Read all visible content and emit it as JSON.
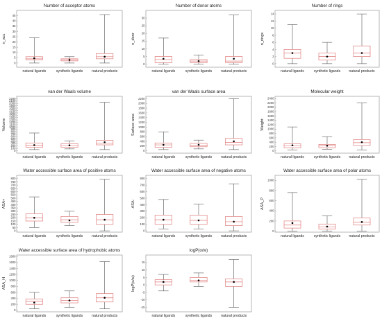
{
  "colors": {
    "box": "#e07a7a",
    "whisker": "#555555",
    "frame": "#999999",
    "mean": "#000000"
  },
  "chart_data": [
    {
      "type": "box",
      "title": "Number of acceptor atoms",
      "ylabel": "n_acc",
      "categories": [
        "natural ligands",
        "synthetic ligands",
        "natural products"
      ],
      "ylim": [
        -4,
        50
      ],
      "yticks": [
        0,
        5,
        10,
        15,
        20,
        25,
        30,
        35,
        40,
        45
      ],
      "boxes": [
        {
          "min": 0,
          "q1": 3,
          "median": 4,
          "q3": 6,
          "max": 24,
          "mean": 4.5
        },
        {
          "min": 0,
          "q1": 2,
          "median": 3,
          "q3": 4,
          "max": 6,
          "mean": 3
        },
        {
          "min": 0,
          "q1": 4,
          "median": 6,
          "q3": 9,
          "max": 46,
          "mean": 6
        }
      ]
    },
    {
      "type": "box",
      "title": "Number of donor atoms",
      "ylabel": "n_donr",
      "categories": [
        "natural ligands",
        "synthetic ligands",
        "natural products"
      ],
      "ylim": [
        -2,
        35
      ],
      "yticks": [
        0,
        5,
        10,
        15,
        20,
        25,
        30
      ],
      "boxes": [
        {
          "min": 0,
          "q1": 1,
          "median": 3,
          "q3": 5,
          "max": 17,
          "mean": 3.5
        },
        {
          "min": 0,
          "q1": 1,
          "median": 2,
          "q3": 3,
          "max": 6,
          "mean": 2
        },
        {
          "min": 0,
          "q1": 1,
          "median": 2,
          "q3": 5,
          "max": 32,
          "mean": 3.5
        }
      ]
    },
    {
      "type": "box",
      "title": "Number of rings",
      "ylabel": "n_rings",
      "categories": [
        "natural ligands",
        "synthetic ligands",
        "natural products"
      ],
      "ylim": [
        -1,
        15
      ],
      "yticks": [
        0,
        2,
        4,
        6,
        8,
        10,
        12,
        14
      ],
      "boxes": [
        {
          "min": 0,
          "q1": 1.5,
          "median": 3,
          "q3": 4,
          "max": 11,
          "mean": 3
        },
        {
          "min": 0,
          "q1": 1,
          "median": 2,
          "q3": 3,
          "max": 6,
          "mean": 2
        },
        {
          "min": 0,
          "q1": 2,
          "median": 3,
          "q3": 5,
          "max": 14,
          "mean": 3
        }
      ]
    },
    {
      "type": "box",
      "title": "van der Waals volume",
      "ylabel": "Volume",
      "categories": [
        "natural ligands",
        "synthetic ligands",
        "natural products"
      ],
      "ylim": [
        -100,
        2300
      ],
      "yticks": [
        0,
        100,
        200,
        300,
        400,
        500,
        600,
        700,
        800,
        900,
        1000,
        1100,
        1200,
        1300,
        1400,
        1500,
        1600,
        1700,
        1800,
        1900,
        2000,
        2100,
        2200
      ],
      "boxes": [
        {
          "min": 50,
          "q1": 150,
          "median": 230,
          "q3": 330,
          "max": 750,
          "mean": 240
        },
        {
          "min": 80,
          "q1": 150,
          "median": 220,
          "q3": 300,
          "max": 420,
          "mean": 230
        },
        {
          "min": 50,
          "q1": 250,
          "median": 330,
          "q3": 440,
          "max": 2050,
          "mean": 360
        }
      ]
    },
    {
      "type": "box",
      "title": "van der Waals surface area",
      "ylabel": "Surface area",
      "categories": [
        "natural ligands",
        "synthetic ligands",
        "natural products"
      ],
      "ylim": [
        -100,
        2300
      ],
      "yticks": [
        0,
        200,
        400,
        600,
        800,
        1000,
        1200,
        1400,
        1600,
        1800,
        2000,
        2200
      ],
      "boxes": [
        {
          "min": 50,
          "q1": 150,
          "median": 250,
          "q3": 330,
          "max": 800,
          "mean": 250
        },
        {
          "min": 80,
          "q1": 170,
          "median": 240,
          "q3": 310,
          "max": 450,
          "mean": 250
        },
        {
          "min": 50,
          "q1": 250,
          "median": 350,
          "q3": 520,
          "max": 2200,
          "mean": 400
        }
      ]
    },
    {
      "type": "box",
      "title": "Molecular weight",
      "ylabel": "Weight",
      "categories": [
        "natural ligands",
        "synthetic ligands",
        "natural products"
      ],
      "ylim": [
        -100,
        2500
      ],
      "yticks": [
        0,
        200,
        400,
        600,
        800,
        1000,
        1200,
        1400,
        1600,
        1800,
        2000,
        2200,
        2400
      ],
      "boxes": [
        {
          "min": 50,
          "q1": 150,
          "median": 250,
          "q3": 330,
          "max": 1100,
          "mean": 260
        },
        {
          "min": 80,
          "q1": 150,
          "median": 230,
          "q3": 300,
          "max": 650,
          "mean": 240
        },
        {
          "min": 50,
          "q1": 250,
          "median": 380,
          "q3": 520,
          "max": 2200,
          "mean": 400
        }
      ]
    },
    {
      "type": "box",
      "title": "Water accessible surface area of positive atoms",
      "ylabel": "ASA+",
      "categories": [
        "natural ligands",
        "synthetic ligands",
        "natural products"
      ],
      "ylim": [
        -20,
        850
      ],
      "yticks": [
        0,
        50,
        100,
        150,
        200,
        250,
        300,
        350,
        400,
        450,
        500,
        550,
        600,
        650,
        700,
        750,
        800
      ],
      "boxes": [
        {
          "min": 50,
          "q1": 150,
          "median": 200,
          "q3": 260,
          "max": 520,
          "mean": 200
        },
        {
          "min": 80,
          "q1": 130,
          "median": 170,
          "q3": 220,
          "max": 300,
          "mean": 160
        },
        {
          "min": 0,
          "q1": 100,
          "median": 170,
          "q3": 250,
          "max": 790,
          "mean": 170
        }
      ]
    },
    {
      "type": "box",
      "title": "Water accessible surface area of negative atoms",
      "ylabel": "ASA-",
      "categories": [
        "natural ligands",
        "synthetic ligands",
        "natural products"
      ],
      "ylim": [
        -20,
        850
      ],
      "yticks": [
        0,
        100,
        200,
        300,
        400,
        500,
        600,
        700,
        800
      ],
      "boxes": [
        {
          "min": 30,
          "q1": 100,
          "median": 170,
          "q3": 240,
          "max": 480,
          "mean": 170
        },
        {
          "min": 30,
          "q1": 100,
          "median": 160,
          "q3": 240,
          "max": 410,
          "mean": 160
        },
        {
          "min": 0,
          "q1": 80,
          "median": 140,
          "q3": 220,
          "max": 720,
          "mean": 140
        }
      ]
    },
    {
      "type": "box",
      "title": "Water accessible surface area of polar atoms",
      "ylabel": "ASA_P",
      "categories": [
        "natural ligands",
        "synthetic ligands",
        "natural products"
      ],
      "ylim": [
        -20,
        1100
      ],
      "yticks": [
        0,
        200,
        400,
        600,
        800,
        1000
      ],
      "boxes": [
        {
          "min": 0,
          "q1": 60,
          "median": 120,
          "q3": 200,
          "max": 760,
          "mean": 160
        },
        {
          "min": 0,
          "q1": 40,
          "median": 80,
          "q3": 140,
          "max": 300,
          "mean": 90
        },
        {
          "min": 0,
          "q1": 120,
          "median": 180,
          "q3": 260,
          "max": 1020,
          "mean": 180
        }
      ]
    },
    {
      "type": "box",
      "title": "Water accessible surface area of hydrophobic atoms",
      "ylabel": "ASA_H",
      "categories": [
        "natural ligands",
        "synthetic ligands",
        "natural products"
      ],
      "ylim": [
        -50,
        1850
      ],
      "yticks": [
        0,
        200,
        400,
        600,
        800,
        1000,
        1200,
        1400,
        1600,
        1800
      ],
      "boxes": [
        {
          "min": 50,
          "q1": 200,
          "median": 300,
          "q3": 380,
          "max": 600,
          "mean": 260
        },
        {
          "min": 100,
          "q1": 250,
          "median": 330,
          "q3": 420,
          "max": 650,
          "mean": 330
        },
        {
          "min": 50,
          "q1": 280,
          "median": 420,
          "q3": 560,
          "max": 1630,
          "mean": 420
        }
      ]
    },
    {
      "type": "box",
      "title": "logP(o/w)",
      "ylabel": "logP(o/w)",
      "categories": [
        "natural ligands",
        "synthetic ligands",
        "natural products"
      ],
      "ylim": [
        -18,
        20
      ],
      "yticks": [
        -15,
        -10,
        -5,
        0,
        5,
        10,
        15
      ],
      "boxes": [
        {
          "min": -4,
          "q1": 0,
          "median": 2,
          "q3": 3.5,
          "max": 7,
          "mean": 2
        },
        {
          "min": -1,
          "q1": 2,
          "median": 3,
          "q3": 5,
          "max": 8,
          "mean": 3
        },
        {
          "min": -15,
          "q1": -1,
          "median": 2,
          "q3": 4,
          "max": 17,
          "mean": 2
        }
      ]
    }
  ]
}
